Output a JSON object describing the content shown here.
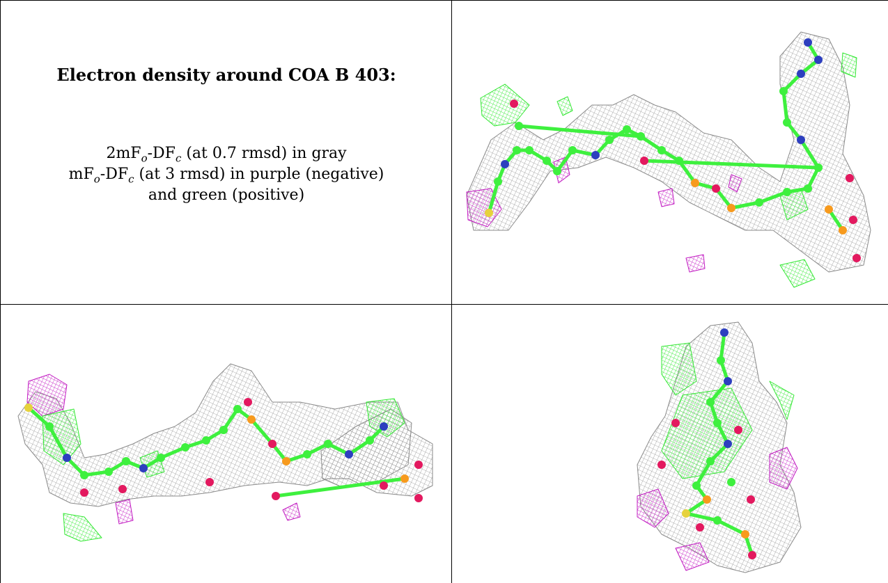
{
  "caption": {
    "title": "Electron density around COA B 403:",
    "line1_prefix": "2mF",
    "line1_sub_o": "o",
    "line1_mid": "-DF",
    "line1_sub_c": "c",
    "line1_suffix": " (at 0.7 rmsd) in gray",
    "line2_prefix": "mF",
    "line2_sub_o": "o",
    "line2_mid": "-DF",
    "line2_sub_c": "c",
    "line2_suffix": " (at 3 rmsd) in purple (negative)",
    "line3": "and green (positive)"
  },
  "panels": [
    {
      "name": "view-top-right",
      "description_hidden": true
    },
    {
      "name": "view-bottom-left",
      "description_hidden": true
    },
    {
      "name": "view-bottom-right",
      "description_hidden": true
    }
  ],
  "colors": {
    "mesh_gray": "#8a8a8a",
    "mesh_green": "#33e833",
    "mesh_purple": "#c21bc2",
    "carbon": "#3ef03e",
    "oxygen": "#e3195f",
    "nitrogen": "#2d3fbf",
    "phosphorus": "#f79a1d",
    "sulfur": "#e6d23c"
  }
}
